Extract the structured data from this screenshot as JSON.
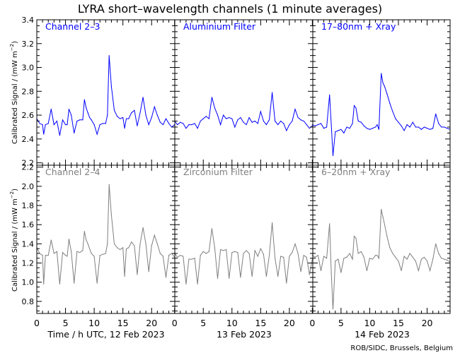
{
  "chart_data": {
    "type": "scatter",
    "title": "LYRA short–wavelength channels (1 minute averages)",
    "ylabel": "Calibrated Signal / (mW m",
    "ylabel_sup": "−2",
    "ylabel_close": ")",
    "xlabel": "Time / h UTC, 12 Feb 2023",
    "day_labels": [
      "13 Feb 2023",
      "14 Feb 2023"
    ],
    "credit": "ROB/SIDC, Brussels, Belgium",
    "xlim": [
      0,
      72
    ],
    "x_tick_labels": [
      "0",
      "5",
      "10",
      "15",
      "20",
      "0",
      "5",
      "10",
      "15",
      "20",
      "0",
      "5",
      "10",
      "15",
      "20"
    ],
    "x_tick_values": [
      0,
      5,
      10,
      15,
      20,
      24,
      29,
      34,
      39,
      44,
      48,
      53,
      58,
      63,
      68
    ],
    "rows": [
      {
        "ylim": [
          2.18,
          3.4
        ],
        "y_ticks": [
          2.2,
          2.4,
          2.6,
          2.8,
          3.0,
          3.2,
          3.4
        ],
        "y_tick_labels": [
          "2.2",
          "2.4",
          "2.6",
          "2.8",
          "3.0",
          "3.2",
          "3.4"
        ],
        "color": "#0000ff",
        "panels": [
          {
            "label": "Channel 2–3",
            "x": [
              0,
              0.5,
              1,
              1.2,
              1.5,
              2,
              2.5,
              3,
              3.5,
              4,
              4.5,
              5,
              5.3,
              5.6,
              6,
              6.5,
              7,
              7.5,
              8,
              8.3,
              8.6,
              8.9,
              9.2,
              9.5,
              10,
              10.5,
              11,
              11.5,
              12,
              12.3,
              12.6,
              13,
              13.5,
              14,
              14.5,
              15,
              15.3,
              15.6,
              16,
              16.5,
              17,
              17.5,
              18,
              18.5,
              19,
              19.5,
              20,
              20.5,
              21,
              21.5,
              22,
              22.5,
              23,
              23.5,
              24
            ],
            "y": [
              2.57,
              2.53,
              2.52,
              2.44,
              2.52,
              2.53,
              2.65,
              2.52,
              2.55,
              2.43,
              2.56,
              2.52,
              2.52,
              2.65,
              2.6,
              2.45,
              2.55,
              2.56,
              2.56,
              2.73,
              2.66,
              2.62,
              2.58,
              2.56,
              2.52,
              2.44,
              2.52,
              2.53,
              2.53,
              2.6,
              3.1,
              2.84,
              2.64,
              2.59,
              2.57,
              2.58,
              2.49,
              2.57,
              2.57,
              2.62,
              2.64,
              2.51,
              2.62,
              2.75,
              2.6,
              2.52,
              2.58,
              2.67,
              2.6,
              2.54,
              2.52,
              2.57,
              2.53,
              2.5,
              2.52
            ]
          },
          {
            "label": "Aluminium Filter",
            "x": [
              24,
              24.5,
              25,
              25.5,
              26,
              26.5,
              27,
              27.5,
              28,
              28.5,
              29,
              29.5,
              30,
              30.5,
              31,
              31.5,
              32,
              32.5,
              33,
              33.5,
              34,
              34.5,
              35,
              35.5,
              36,
              36.5,
              37,
              37.5,
              38,
              38.5,
              39,
              39.5,
              40,
              40.5,
              41,
              41.5,
              42,
              42.5,
              43,
              43.5,
              44,
              44.5,
              45,
              45.5,
              46,
              46.5,
              47,
              47.5,
              48
            ],
            "y": [
              2.55,
              2.52,
              2.54,
              2.53,
              2.49,
              2.52,
              2.52,
              2.53,
              2.49,
              2.55,
              2.57,
              2.59,
              2.57,
              2.75,
              2.66,
              2.6,
              2.52,
              2.6,
              2.57,
              2.58,
              2.57,
              2.5,
              2.56,
              2.58,
              2.54,
              2.52,
              2.58,
              2.54,
              2.55,
              2.53,
              2.63,
              2.55,
              2.52,
              2.56,
              2.79,
              2.55,
              2.52,
              2.55,
              2.53,
              2.47,
              2.52,
              2.55,
              2.65,
              2.58,
              2.56,
              2.55,
              2.52,
              2.49,
              2.51
            ]
          },
          {
            "label": "17–80nm + Xray",
            "x": [
              48,
              48.5,
              49,
              49.5,
              50,
              50.5,
              51,
              51.3,
              51.6,
              52,
              52.5,
              53,
              53.5,
              54,
              54.5,
              55,
              55.3,
              55.6,
              56,
              56.5,
              57,
              57.5,
              58,
              58.5,
              59,
              59.3,
              59.6,
              60,
              60.3,
              60.6,
              61,
              61.5,
              62,
              62.5,
              63,
              63.5,
              64,
              64.5,
              65,
              65.5,
              66,
              66.5,
              67,
              67.5,
              68,
              68.5,
              69,
              69.5,
              70,
              70.5,
              71,
              71.5,
              72
            ],
            "y": [
              2.52,
              2.51,
              2.52,
              2.53,
              2.49,
              2.5,
              2.77,
              2.52,
              2.26,
              2.46,
              2.47,
              2.48,
              2.45,
              2.5,
              2.49,
              2.53,
              2.68,
              2.66,
              2.55,
              2.54,
              2.51,
              2.49,
              2.48,
              2.49,
              2.5,
              2.52,
              2.48,
              2.95,
              2.87,
              2.84,
              2.78,
              2.7,
              2.63,
              2.57,
              2.54,
              2.51,
              2.47,
              2.52,
              2.5,
              2.54,
              2.5,
              2.5,
              2.48,
              2.5,
              2.49,
              2.48,
              2.49,
              2.61,
              2.53,
              2.5,
              2.5,
              2.49,
              2.48
            ]
          }
        ]
      },
      {
        "ylim": [
          0.674,
          2.22
        ],
        "y_ticks": [
          0.8,
          1.0,
          1.2,
          1.4,
          1.6,
          1.8,
          2.0,
          2.2
        ],
        "y_tick_labels": [
          "0.8",
          "1.0",
          "1.2",
          "1.4",
          "1.6",
          "1.8",
          "2.0",
          "2.2"
        ],
        "color": "#7f7f7f",
        "panels": [
          {
            "label": "Channel 2–4",
            "x": [
              0,
              0.5,
              1,
              1.2,
              1.5,
              2,
              2.5,
              3,
              3.5,
              4,
              4.5,
              5,
              5.3,
              5.6,
              6,
              6.5,
              7,
              7.5,
              8,
              8.3,
              8.6,
              8.9,
              9.2,
              9.5,
              10,
              10.5,
              11,
              11.5,
              12,
              12.3,
              12.6,
              13,
              13.5,
              14,
              14.5,
              15,
              15.3,
              15.6,
              16,
              16.5,
              17,
              17.5,
              18,
              18.5,
              19,
              19.5,
              20,
              20.5,
              21,
              21.5,
              22,
              22.5,
              23,
              23.5,
              24
            ],
            "y": [
              1.36,
              1.3,
              1.28,
              0.98,
              1.28,
              1.28,
              1.44,
              1.3,
              1.32,
              0.98,
              1.31,
              1.28,
              1.27,
              1.45,
              1.32,
              0.99,
              1.32,
              1.31,
              1.33,
              1.53,
              1.44,
              1.4,
              1.35,
              1.3,
              1.27,
              0.99,
              1.28,
              1.29,
              1.3,
              1.4,
              2.02,
              1.7,
              1.4,
              1.36,
              1.34,
              1.36,
              1.06,
              1.35,
              1.36,
              1.42,
              1.38,
              1.08,
              1.4,
              1.57,
              1.4,
              1.11,
              1.38,
              1.49,
              1.4,
              1.3,
              1.27,
              1.05,
              1.28,
              1.3,
              1.26
            ]
          },
          {
            "label": "Zirconium Filter",
            "x": [
              24,
              24.5,
              25,
              25.5,
              26,
              26.5,
              27,
              27.5,
              28,
              28.5,
              29,
              29.5,
              30,
              30.5,
              31,
              31.5,
              32,
              32.5,
              33,
              33.5,
              34,
              34.5,
              35,
              35.5,
              36,
              36.5,
              37,
              37.5,
              38,
              38.5,
              39,
              39.5,
              40,
              40.5,
              41,
              41.5,
              42,
              42.5,
              43,
              43.5,
              44,
              44.5,
              45,
              45.5,
              46,
              46.5,
              47,
              47.5,
              48
            ],
            "y": [
              1.3,
              1.26,
              1.28,
              1.27,
              0.98,
              1.24,
              1.24,
              1.25,
              0.98,
              1.28,
              1.32,
              1.3,
              1.32,
              1.56,
              1.36,
              1.04,
              1.34,
              1.33,
              1.34,
              1.04,
              1.31,
              1.32,
              1.31,
              1.05,
              1.3,
              1.33,
              1.3,
              1.06,
              1.33,
              1.27,
              1.35,
              1.29,
              1.06,
              1.28,
              1.62,
              1.25,
              1.06,
              1.27,
              1.26,
              0.99,
              1.27,
              1.31,
              1.4,
              1.3,
              1.11,
              1.28,
              1.26,
              1.08,
              1.24
            ]
          },
          {
            "label": "6–20nm + Xray",
            "x": [
              48,
              48.5,
              49,
              49.5,
              50,
              50.5,
              51,
              51.3,
              51.6,
              52,
              52.5,
              53,
              53.5,
              54,
              54.5,
              55,
              55.3,
              55.6,
              56,
              56.5,
              57,
              57.5,
              58,
              58.5,
              59,
              59.3,
              59.6,
              60,
              60.3,
              60.6,
              61,
              61.5,
              62,
              62.5,
              63,
              63.5,
              64,
              64.5,
              65,
              65.5,
              66,
              66.5,
              67,
              67.5,
              68,
              68.5,
              69,
              69.5,
              70,
              70.5,
              71,
              71.5,
              72
            ],
            "y": [
              1.28,
              1.26,
              1.28,
              1.12,
              1.27,
              1.25,
              1.61,
              1.1,
              0.72,
              1.22,
              1.24,
              1.1,
              1.25,
              1.26,
              1.3,
              1.24,
              1.48,
              1.46,
              1.3,
              1.32,
              1.26,
              1.12,
              1.25,
              1.24,
              1.28,
              1.28,
              1.25,
              1.76,
              1.68,
              1.6,
              1.48,
              1.36,
              1.3,
              1.26,
              1.22,
              1.12,
              1.27,
              1.24,
              1.3,
              1.26,
              1.22,
              1.12,
              1.24,
              1.26,
              1.22,
              1.12,
              1.24,
              1.4,
              1.3,
              1.25,
              1.24,
              1.23,
              1.21
            ]
          }
        ]
      }
    ]
  }
}
